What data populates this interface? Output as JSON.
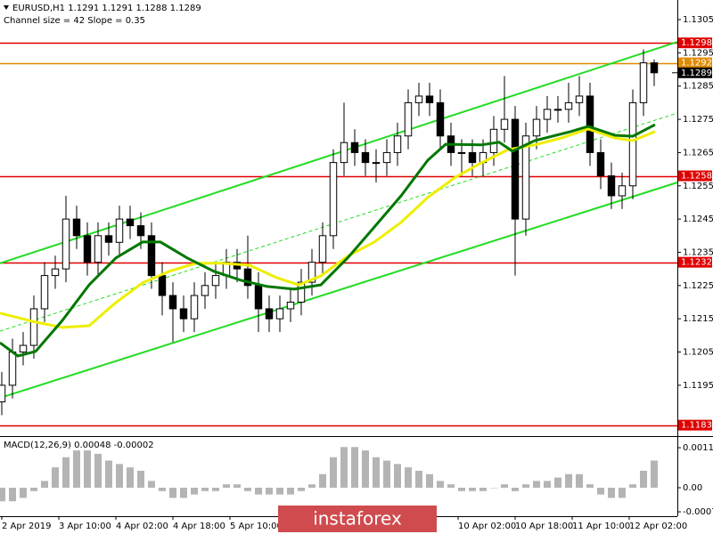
{
  "chart_data": {
    "type": "candlestick",
    "title": "EURUSD,H1  1.1291 1.1291 1.1288 1.1289",
    "subtitle": "Channel size = 42 Slope = 0.35",
    "x": [
      0,
      3,
      6,
      9,
      12,
      15,
      18,
      21,
      24,
      27,
      30,
      33,
      36,
      39,
      42,
      45,
      48,
      51,
      54,
      57,
      60,
      63,
      66,
      69,
      72,
      75,
      78,
      81,
      84,
      87,
      90,
      93,
      96,
      99,
      102,
      105,
      108,
      111,
      114,
      117,
      120,
      123,
      126,
      129,
      132,
      135,
      138,
      141,
      144,
      147,
      150,
      153,
      156,
      159,
      162,
      165,
      168,
      171,
      174,
      177,
      180,
      183
    ],
    "open": [
      1.119,
      1.1195,
      1.1205,
      1.1207,
      1.1218,
      1.1228,
      1.123,
      1.1245,
      1.124,
      1.1232,
      1.124,
      1.1238,
      1.1245,
      1.1243,
      1.124,
      1.1228,
      1.1222,
      1.1218,
      1.1215,
      1.1222,
      1.1225,
      1.1228,
      1.1232,
      1.123,
      1.1225,
      1.1218,
      1.1215,
      1.1218,
      1.122,
      1.1226,
      1.1232,
      1.124,
      1.1262,
      1.1268,
      1.1265,
      1.1262,
      1.1262,
      1.1265,
      1.127,
      1.128,
      1.1282,
      1.128,
      1.127,
      1.1265,
      1.1265,
      1.1262,
      1.1265,
      1.1272,
      1.1275,
      1.1245,
      1.127,
      1.1275,
      1.1278,
      1.1278,
      1.128,
      1.1282,
      1.1265,
      1.1258,
      1.1252,
      1.1255,
      1.128,
      1.1292
    ],
    "high": [
      1.1199,
      1.1209,
      1.1211,
      1.1222,
      1.1232,
      1.1234,
      1.1252,
      1.1249,
      1.1244,
      1.1244,
      1.1244,
      1.1249,
      1.1249,
      1.1247,
      1.1244,
      1.1232,
      1.1226,
      1.1222,
      1.1226,
      1.1229,
      1.1232,
      1.1236,
      1.1236,
      1.124,
      1.1229,
      1.1222,
      1.1222,
      1.1224,
      1.123,
      1.1236,
      1.1244,
      1.1266,
      1.128,
      1.1272,
      1.1269,
      1.1266,
      1.1269,
      1.1274,
      1.1284,
      1.1286,
      1.1286,
      1.1284,
      1.1274,
      1.1269,
      1.1269,
      1.1269,
      1.1276,
      1.1288,
      1.1279,
      1.1274,
      1.1279,
      1.1282,
      1.1282,
      1.1286,
      1.1288,
      1.1286,
      1.1269,
      1.1262,
      1.1259,
      1.1284,
      1.1296,
      1.1293
    ],
    "low": [
      1.1186,
      1.1191,
      1.1201,
      1.1203,
      1.1214,
      1.1224,
      1.1226,
      1.1236,
      1.1228,
      1.1228,
      1.1234,
      1.1234,
      1.1239,
      1.1236,
      1.1224,
      1.1216,
      1.1208,
      1.1211,
      1.1211,
      1.1218,
      1.1221,
      1.1224,
      1.1226,
      1.1221,
      1.1211,
      1.1211,
      1.1211,
      1.1214,
      1.1216,
      1.1222,
      1.1228,
      1.1236,
      1.1258,
      1.1261,
      1.1258,
      1.1256,
      1.1258,
      1.1261,
      1.1266,
      1.1276,
      1.1276,
      1.1266,
      1.1261,
      1.1258,
      1.1258,
      1.1258,
      1.1261,
      1.1268,
      1.1228,
      1.124,
      1.1266,
      1.1271,
      1.1274,
      1.1274,
      1.1276,
      1.1261,
      1.1254,
      1.1248,
      1.1248,
      1.1251,
      1.1276,
      1.1285
    ],
    "close": [
      1.1195,
      1.1205,
      1.1207,
      1.1218,
      1.1228,
      1.123,
      1.1245,
      1.124,
      1.1232,
      1.124,
      1.1238,
      1.1245,
      1.1243,
      1.124,
      1.1228,
      1.1222,
      1.1218,
      1.1215,
      1.1222,
      1.1225,
      1.1228,
      1.1232,
      1.123,
      1.1225,
      1.1218,
      1.1215,
      1.1218,
      1.122,
      1.1226,
      1.1232,
      1.124,
      1.1262,
      1.1268,
      1.1265,
      1.1262,
      1.1262,
      1.1265,
      1.127,
      1.128,
      1.1282,
      1.128,
      1.127,
      1.1265,
      1.1265,
      1.1262,
      1.1265,
      1.1272,
      1.1275,
      1.1245,
      1.127,
      1.1275,
      1.1278,
      1.1278,
      1.128,
      1.1282,
      1.1265,
      1.1258,
      1.1252,
      1.1255,
      1.128,
      1.1292,
      1.1289
    ],
    "up_color": "#ffffff",
    "down_color": "#000000",
    "xlim": [
      -0.5,
      189.5
    ],
    "xticks": [
      {
        "value": 0,
        "label": "2 Apr 2019"
      },
      {
        "value": 16,
        "label": "3 Apr 10:00"
      },
      {
        "value": 32,
        "label": "4 Apr 02:00"
      },
      {
        "value": 48,
        "label": "4 Apr 18:00"
      },
      {
        "value": 64,
        "label": "5 Apr 10:00"
      },
      {
        "value": 128,
        "label": "10 Apr 02:00"
      },
      {
        "value": 144,
        "label": "10 Apr 18:00"
      },
      {
        "value": 160,
        "label": "11 Apr 10:00"
      },
      {
        "value": 176,
        "label": "12 Apr 02:00"
      }
    ],
    "ylim": [
      1.11797,
      1.13109
    ],
    "yticks": [
      1.1305,
      1.1295,
      1.1285,
      1.1275,
      1.1265,
      1.1255,
      1.1245,
      1.1235,
      1.1225,
      1.1215,
      1.1205,
      1.1195
    ],
    "levels": [
      {
        "value": 1.1298,
        "color": "#e00000"
      },
      {
        "value": 1.1292,
        "color": "#e08a00"
      },
      {
        "value": 1.1258,
        "color": "#e00000"
      },
      {
        "value": 1.1232,
        "color": "#e00000"
      },
      {
        "value": 1.1183,
        "color": "#e00000"
      }
    ],
    "last_price": 1.1289,
    "lines": [
      {
        "color": "#22dd22",
        "width": 2,
        "dash": false,
        "x": [
          -0.5,
          189.5
        ],
        "values": [
          1.12317,
          1.12983
        ]
      },
      {
        "color": "#22dd22",
        "width": 2,
        "dash": false,
        "x": [
          -0.5,
          189.5
        ],
        "values": [
          1.11912,
          1.1256
        ]
      },
      {
        "color": "#22dd22",
        "width": 1,
        "dash": true,
        "x": [
          -0.5,
          189.5
        ],
        "values": [
          1.12113,
          1.12769
        ]
      },
      {
        "color": "#eeee00",
        "width": 3,
        "dash": false,
        "x": [
          -0.5,
          9.5,
          17,
          24.5,
          32,
          39.5,
          47,
          54.5,
          62,
          69.5,
          77,
          83.25,
          89.5,
          97,
          104.5,
          112,
          119.5,
          127,
          134.5,
          142,
          149.5,
          157,
          164.5,
          172,
          177,
          183.25
        ],
        "values": [
          1.12167,
          1.1214,
          1.12124,
          1.12129,
          1.12199,
          1.12258,
          1.12293,
          1.12317,
          1.12317,
          1.12311,
          1.12274,
          1.12252,
          1.12279,
          1.12338,
          1.12381,
          1.1244,
          1.12515,
          1.12574,
          1.12619,
          1.12659,
          1.12673,
          1.12694,
          1.12721,
          1.12694,
          1.12686,
          1.12713
        ]
      },
      {
        "color": "#007700",
        "width": 3,
        "dash": false,
        "x": [
          -0.5,
          4.5,
          9.5,
          17,
          24.5,
          32,
          39.5,
          44.5,
          52,
          59.5,
          67,
          74.5,
          82,
          89.5,
          97,
          104.5,
          112,
          119.5,
          124.5,
          134.5,
          139.5,
          143.25,
          149.5,
          159.5,
          164.5,
          172,
          177,
          183.25
        ],
        "values": [
          1.12078,
          1.12038,
          1.12052,
          1.12145,
          1.12252,
          1.12333,
          1.12381,
          1.12381,
          1.12333,
          1.12293,
          1.12266,
          1.12247,
          1.12239,
          1.12252,
          1.12333,
          1.12426,
          1.1252,
          1.12627,
          1.12675,
          1.12673,
          1.12681,
          1.12654,
          1.12686,
          1.12713,
          1.12729,
          1.12702,
          1.12699,
          1.12734
        ]
      }
    ],
    "macd": {
      "title": "MACD(12,26,9) 0.00048 -0.00002",
      "color": "#b4b4b4",
      "values": [
        -0.0004,
        -0.0004,
        -0.0003,
        -0.0001,
        0.0002,
        0.0006,
        0.0009,
        0.0011,
        0.0011,
        0.001,
        0.0008,
        0.0007,
        0.0006,
        0.0005,
        0.0002,
        -0.0001,
        -0.0003,
        -0.0003,
        -0.0002,
        -0.0001,
        -0.0001,
        0.0001,
        0.0001,
        -0.0001,
        -0.0002,
        -0.0002,
        -0.0002,
        -0.0002,
        -0.0001,
        0.0001,
        0.0004,
        0.0009,
        0.0012,
        0.0012,
        0.0011,
        0.0009,
        0.0008,
        0.0007,
        0.0006,
        0.0005,
        0.0004,
        0.0002,
        0.0001,
        -0.0001,
        -0.0001,
        -0.0001,
        0,
        0.0001,
        -0.0001,
        0.0001,
        0.0002,
        0.0002,
        0.0003,
        0.0004,
        0.0004,
        0.0001,
        -0.0002,
        -0.0003,
        -0.0003,
        0.0001,
        0.0005,
        0.0008
      ],
      "ylim": [
        -0.00084,
        0.00147
      ],
      "yticks": [
        0.00118,
        {
          "value": 0,
          "label": "0.00"
        },
        -0.00071
      ]
    },
    "watermark": "instaforex"
  }
}
